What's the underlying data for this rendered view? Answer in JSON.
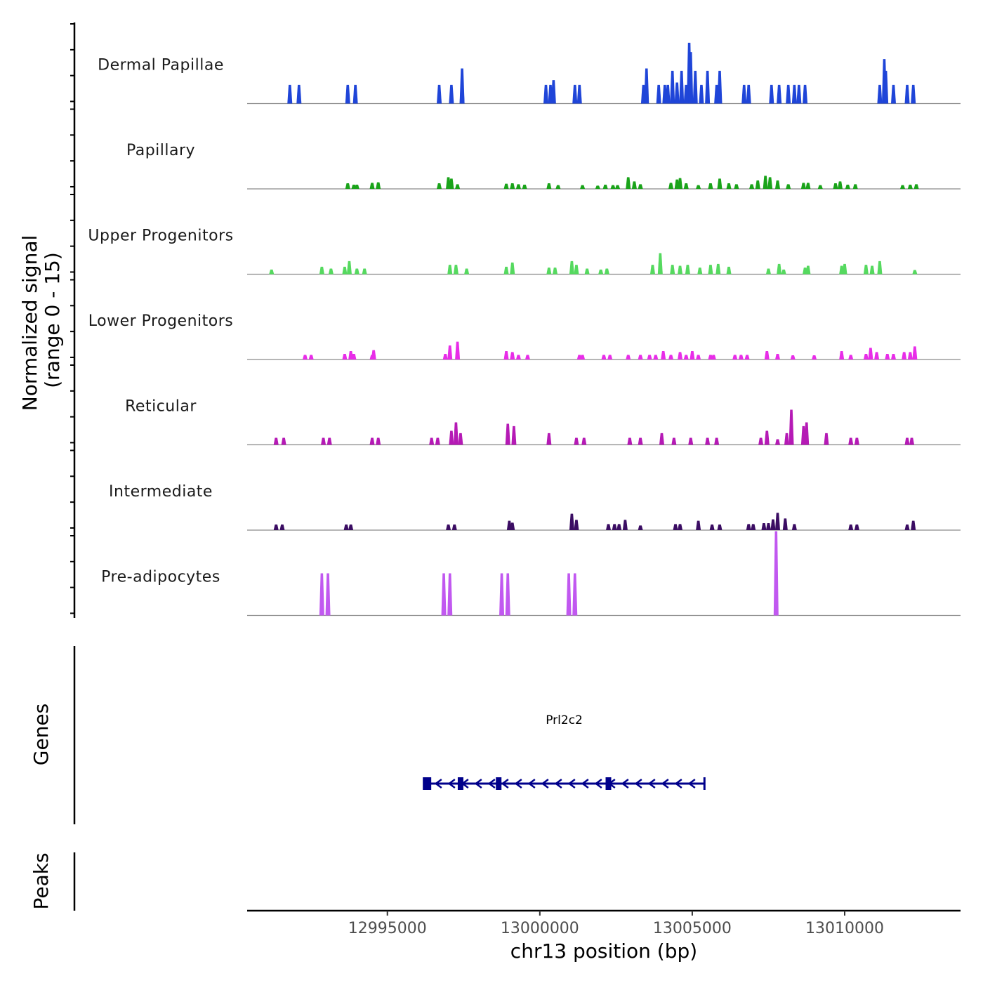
{
  "chart_data": {
    "type": "area",
    "title": "",
    "ylabel": "Normalized signal",
    "ylabel_sub": "(range 0 - 15)",
    "ylim": [
      0,
      15
    ],
    "xlabel": "chr13 position (bp)",
    "xlim": [
      12990400,
      13013800
    ],
    "x_ticks": [
      12995000,
      13000000,
      13005000,
      13010000
    ],
    "x_tick_labels": [
      "12995000",
      "13000000",
      "13005000",
      "13010000"
    ],
    "tracks": [
      {
        "name": "Dermal Papillae",
        "color": "#1f45d8",
        "points": [
          [
            12991800,
            4
          ],
          [
            12992100,
            4
          ],
          [
            12993700,
            4
          ],
          [
            12993950,
            4
          ],
          [
            12996700,
            4
          ],
          [
            12997100,
            4
          ],
          [
            12997450,
            5
          ],
          [
            12997450,
            7.5
          ],
          [
            13000200,
            4
          ],
          [
            13000350,
            4
          ],
          [
            13000450,
            5
          ],
          [
            13001150,
            4
          ],
          [
            13001300,
            4
          ],
          [
            13003400,
            4
          ],
          [
            13003500,
            7.5
          ],
          [
            13003900,
            4
          ],
          [
            13004100,
            4
          ],
          [
            13004200,
            4
          ],
          [
            13004350,
            7
          ],
          [
            13004500,
            4.5
          ],
          [
            13004650,
            7
          ],
          [
            13004800,
            4
          ],
          [
            13004900,
            13
          ],
          [
            13004950,
            11
          ],
          [
            13005100,
            7
          ],
          [
            13005300,
            4
          ],
          [
            13005500,
            7
          ],
          [
            13005800,
            4
          ],
          [
            13005900,
            7
          ],
          [
            13006700,
            4
          ],
          [
            13006850,
            4
          ],
          [
            13007600,
            4
          ],
          [
            13007850,
            4
          ],
          [
            13008150,
            4
          ],
          [
            13008350,
            4
          ],
          [
            13008500,
            4
          ],
          [
            13008700,
            4
          ],
          [
            13011150,
            4
          ],
          [
            13011300,
            9.5
          ],
          [
            13011350,
            7
          ],
          [
            13011600,
            4
          ],
          [
            13012050,
            4
          ],
          [
            13012250,
            4
          ]
        ]
      },
      {
        "name": "Papillary",
        "color": "#1aa31a",
        "points": [
          [
            12993700,
            1.2
          ],
          [
            12993900,
            0.9
          ],
          [
            12994000,
            0.9
          ],
          [
            12994500,
            1.3
          ],
          [
            12994700,
            1.4
          ],
          [
            12996700,
            1.2
          ],
          [
            12997000,
            2.5
          ],
          [
            12997100,
            2.2
          ],
          [
            12997300,
            1
          ],
          [
            12998900,
            1.1
          ],
          [
            12999100,
            1.2
          ],
          [
            12999300,
            1
          ],
          [
            12999500,
            0.9
          ],
          [
            13000300,
            1.2
          ],
          [
            13000600,
            0.8
          ],
          [
            13001400,
            0.8
          ],
          [
            13001900,
            0.7
          ],
          [
            13002150,
            0.9
          ],
          [
            13002400,
            0.8
          ],
          [
            13002550,
            0.8
          ],
          [
            13002900,
            2.5
          ],
          [
            13003100,
            1.6
          ],
          [
            13003300,
            1
          ],
          [
            13004300,
            1.3
          ],
          [
            13004500,
            2
          ],
          [
            13004600,
            2.3
          ],
          [
            13004800,
            1.2
          ],
          [
            13005200,
            0.8
          ],
          [
            13005600,
            1.2
          ],
          [
            13005900,
            2.2
          ],
          [
            13006200,
            1.2
          ],
          [
            13006450,
            1
          ],
          [
            13006950,
            1
          ],
          [
            13007150,
            1.8
          ],
          [
            13007400,
            2.8
          ],
          [
            13007550,
            2.5
          ],
          [
            13007800,
            1.8
          ],
          [
            13008150,
            1
          ],
          [
            13008650,
            1.3
          ],
          [
            13008800,
            1.3
          ],
          [
            13009200,
            0.8
          ],
          [
            13009700,
            1.2
          ],
          [
            13009850,
            1.6
          ],
          [
            13010100,
            0.9
          ],
          [
            13010350,
            1
          ],
          [
            13011900,
            0.8
          ],
          [
            13012150,
            0.9
          ],
          [
            13012350,
            1
          ]
        ]
      },
      {
        "name": "Upper Progenitors",
        "color": "#55d95f",
        "points": [
          [
            12991200,
            1
          ],
          [
            12992850,
            1.6
          ],
          [
            12993150,
            1.2
          ],
          [
            12993600,
            1.6
          ],
          [
            12993750,
            2.8
          ],
          [
            12994000,
            1.2
          ],
          [
            12994250,
            1.2
          ],
          [
            12997050,
            2
          ],
          [
            12997250,
            2
          ],
          [
            12997600,
            1.2
          ],
          [
            12998900,
            1.6
          ],
          [
            12999100,
            2.5
          ],
          [
            13000300,
            1.4
          ],
          [
            13000500,
            1.4
          ],
          [
            13001050,
            2.8
          ],
          [
            13001200,
            2
          ],
          [
            13001550,
            1.2
          ],
          [
            13002000,
            1
          ],
          [
            13002200,
            1.2
          ],
          [
            13003700,
            2
          ],
          [
            13003950,
            4.5
          ],
          [
            13004350,
            2
          ],
          [
            13004600,
            1.8
          ],
          [
            13004850,
            2
          ],
          [
            13005250,
            1.4
          ],
          [
            13005600,
            2
          ],
          [
            13005850,
            2.2
          ],
          [
            13006200,
            1.6
          ],
          [
            13007500,
            1.2
          ],
          [
            13007850,
            2.2
          ],
          [
            13008000,
            1
          ],
          [
            13008700,
            1.4
          ],
          [
            13008800,
            1.8
          ],
          [
            13009900,
            1.8
          ],
          [
            13010000,
            2.2
          ],
          [
            13010700,
            2
          ],
          [
            13010900,
            1.8
          ],
          [
            13011150,
            2.8
          ],
          [
            13012300,
            0.9
          ]
        ]
      },
      {
        "name": "Lower Progenitors",
        "color": "#e82de8",
        "points": [
          [
            12992300,
            1
          ],
          [
            12992500,
            1
          ],
          [
            12993600,
            1.2
          ],
          [
            12993800,
            1.8
          ],
          [
            12993900,
            1.2
          ],
          [
            12994500,
            1
          ],
          [
            12994550,
            2
          ],
          [
            12996900,
            1.2
          ],
          [
            12997050,
            3
          ],
          [
            12997300,
            3.8
          ],
          [
            12998900,
            1.8
          ],
          [
            12999100,
            1.6
          ],
          [
            12999300,
            1
          ],
          [
            12999600,
            1
          ],
          [
            13001300,
            1
          ],
          [
            13001400,
            1
          ],
          [
            13002100,
            1
          ],
          [
            13002300,
            1
          ],
          [
            13002900,
            1
          ],
          [
            13003300,
            1
          ],
          [
            13003600,
            1
          ],
          [
            13003800,
            1
          ],
          [
            13004050,
            1.8
          ],
          [
            13004300,
            1
          ],
          [
            13004600,
            1.6
          ],
          [
            13004800,
            1
          ],
          [
            13005000,
            1.8
          ],
          [
            13005200,
            1
          ],
          [
            13005600,
            1
          ],
          [
            13005700,
            1
          ],
          [
            13006400,
            1
          ],
          [
            13006600,
            1
          ],
          [
            13006800,
            1
          ],
          [
            13007450,
            1.8
          ],
          [
            13007800,
            1.2
          ],
          [
            13008300,
            0.9
          ],
          [
            13009000,
            0.9
          ],
          [
            13009900,
            1.8
          ],
          [
            13010200,
            1
          ],
          [
            13010700,
            1.2
          ],
          [
            13010850,
            2.5
          ],
          [
            13011050,
            1.6
          ],
          [
            13011400,
            1.2
          ],
          [
            13011600,
            1.2
          ],
          [
            13011950,
            1.6
          ],
          [
            13012150,
            1.6
          ],
          [
            13012300,
            2.8
          ]
        ]
      },
      {
        "name": "Reticular",
        "color": "#b51ab5",
        "points": [
          [
            12991350,
            1.5
          ],
          [
            12991600,
            1.5
          ],
          [
            12992900,
            1.5
          ],
          [
            12993100,
            1.5
          ],
          [
            12994500,
            1.5
          ],
          [
            12994700,
            1.5
          ],
          [
            12996450,
            1.5
          ],
          [
            12996650,
            1.5
          ],
          [
            12997100,
            3
          ],
          [
            12997250,
            4.8
          ],
          [
            12997400,
            2.5
          ],
          [
            12998950,
            4.5
          ],
          [
            12999150,
            4
          ],
          [
            13000300,
            2.5
          ],
          [
            13001200,
            1.5
          ],
          [
            13001450,
            1.5
          ],
          [
            13002950,
            1.5
          ],
          [
            13003300,
            1.5
          ],
          [
            13004000,
            2.5
          ],
          [
            13004400,
            1.5
          ],
          [
            13004950,
            1.5
          ],
          [
            13005500,
            1.5
          ],
          [
            13005800,
            1.5
          ],
          [
            13007250,
            1.5
          ],
          [
            13007450,
            3
          ],
          [
            13007800,
            1.2
          ],
          [
            13008100,
            2.5
          ],
          [
            13008250,
            7.5
          ],
          [
            13008650,
            4
          ],
          [
            13008750,
            4.8
          ],
          [
            13009400,
            2.5
          ],
          [
            13010200,
            1.5
          ],
          [
            13010400,
            1.5
          ],
          [
            13012050,
            1.5
          ],
          [
            13012200,
            1.5
          ]
        ]
      },
      {
        "name": "Intermediate",
        "color": "#3b0d63",
        "points": [
          [
            12991350,
            1.2
          ],
          [
            12991550,
            1.2
          ],
          [
            12993650,
            1.2
          ],
          [
            12993800,
            1.2
          ],
          [
            12997000,
            1.2
          ],
          [
            12997200,
            1.2
          ],
          [
            12999000,
            2
          ],
          [
            12999100,
            1.6
          ],
          [
            13001050,
            3.5
          ],
          [
            13001200,
            2.2
          ],
          [
            13002250,
            1.3
          ],
          [
            13002450,
            1.3
          ],
          [
            13002600,
            1.3
          ],
          [
            13002800,
            2.2
          ],
          [
            13003300,
            1
          ],
          [
            13004450,
            1.3
          ],
          [
            13004600,
            1.3
          ],
          [
            13005200,
            2
          ],
          [
            13005650,
            1.2
          ],
          [
            13005900,
            1.2
          ],
          [
            13006850,
            1.3
          ],
          [
            13007000,
            1.3
          ],
          [
            13007350,
            1.5
          ],
          [
            13007500,
            1.5
          ],
          [
            13007650,
            2.3
          ],
          [
            13007800,
            3.7
          ],
          [
            13008050,
            2.5
          ],
          [
            13008350,
            1.3
          ],
          [
            13010200,
            1.2
          ],
          [
            13010400,
            1.2
          ],
          [
            13012050,
            1.2
          ],
          [
            13012250,
            2
          ]
        ]
      },
      {
        "name": "Pre-adipocytes",
        "color": "#c158f0",
        "points": [
          [
            12992850,
            9
          ],
          [
            12993050,
            9
          ],
          [
            12996850,
            9
          ],
          [
            12997050,
            9
          ],
          [
            12998750,
            9
          ],
          [
            12998950,
            9
          ],
          [
            13000950,
            9
          ],
          [
            13001150,
            9
          ],
          [
            13007750,
            18
          ]
        ]
      }
    ],
    "gene": {
      "name": "Prl2c2",
      "start": 12996200,
      "end": 13005400,
      "strand": "-",
      "color": "#00008b",
      "exons": [
        12996300,
        12997400,
        12998650,
        13002250
      ]
    },
    "panels": {
      "genes_title": "Genes",
      "peaks_title": "Peaks"
    }
  }
}
